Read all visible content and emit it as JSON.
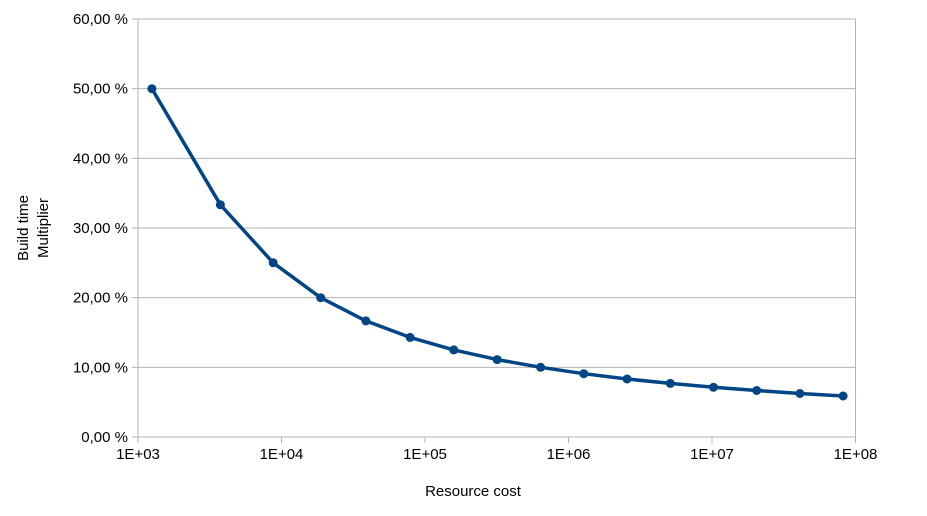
{
  "chart_data": {
    "type": "line",
    "title": "",
    "xlabel": "Resource cost",
    "ylabel_lines": [
      "Build time",
      "Multiplier"
    ],
    "x_scale": "log",
    "xlim": [
      1000,
      100000000
    ],
    "ylim": [
      0,
      60
    ],
    "grid": "horizontal",
    "legend": "none",
    "x_ticks": [
      {
        "value": 1000,
        "label": "1E+03"
      },
      {
        "value": 10000,
        "label": "1E+04"
      },
      {
        "value": 100000,
        "label": "1E+05"
      },
      {
        "value": 1000000,
        "label": "1E+06"
      },
      {
        "value": 10000000,
        "label": "1E+07"
      },
      {
        "value": 100000000,
        "label": "1E+08"
      }
    ],
    "y_ticks": [
      {
        "value": 0,
        "label": "0,00 %"
      },
      {
        "value": 10,
        "label": "10,00 %"
      },
      {
        "value": 20,
        "label": "20,00 %"
      },
      {
        "value": 30,
        "label": "30,00 %"
      },
      {
        "value": 40,
        "label": "40,00 %"
      },
      {
        "value": 50,
        "label": "50,00 %"
      },
      {
        "value": 60,
        "label": "60,00 %"
      }
    ],
    "series": [
      {
        "name": "build-time-multiplier",
        "color": "#004586",
        "marker": "circle",
        "points": [
          {
            "x": 1250,
            "y": 50.0
          },
          {
            "x": 3750,
            "y": 33.33
          },
          {
            "x": 8750,
            "y": 25.0
          },
          {
            "x": 18750,
            "y": 20.0
          },
          {
            "x": 38750,
            "y": 16.67
          },
          {
            "x": 78750,
            "y": 14.29
          },
          {
            "x": 158750,
            "y": 12.5
          },
          {
            "x": 318750,
            "y": 11.11
          },
          {
            "x": 638750,
            "y": 10.0
          },
          {
            "x": 1278750,
            "y": 9.09
          },
          {
            "x": 2558750,
            "y": 8.33
          },
          {
            "x": 5118750,
            "y": 7.69
          },
          {
            "x": 10238750,
            "y": 7.14
          },
          {
            "x": 20478750,
            "y": 6.67
          },
          {
            "x": 40958750,
            "y": 6.25
          },
          {
            "x": 81918750,
            "y": 5.88
          }
        ]
      }
    ]
  },
  "colors": {
    "background": "#ffffff",
    "grid": "#b3b3b3",
    "axis": "#b3b3b3",
    "text": "#000000",
    "series": "#004586"
  }
}
